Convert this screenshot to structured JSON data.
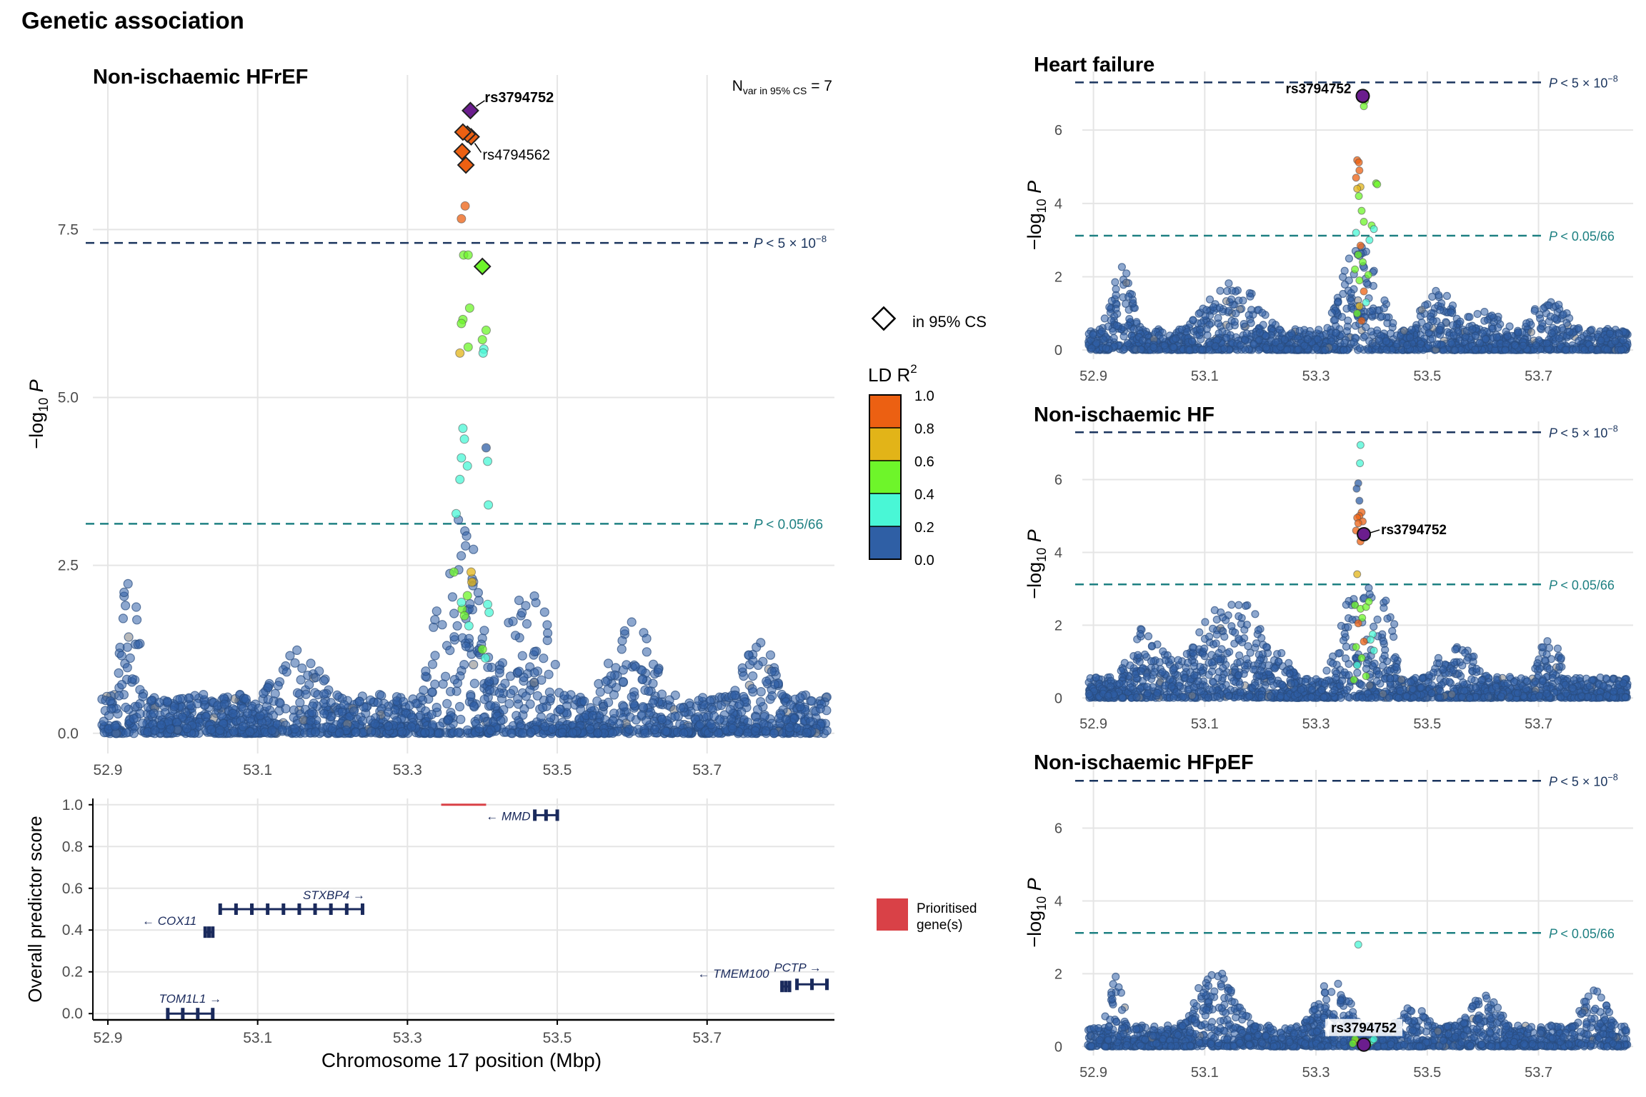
{
  "figure_title": "Genetic association",
  "thresholds": {
    "genome_wide": 7.3,
    "bonferroni": 3.12
  },
  "threshold_labels": {
    "p_prefix": "P",
    "genome_wide": "< 5 × 10",
    "genome_wide_exp": "−8",
    "bonferroni": "< 0.05/66"
  },
  "colors": {
    "ld_0": "#2F5FA5",
    "ld_02": "#49F7D6",
    "ld_04": "#6EF52A",
    "ld_06": "#E2B418",
    "ld_08": "#EC6012",
    "lead": "#6B1D8E",
    "gw_line": "#1B355E",
    "bonf_line": "#1E8082",
    "gene": "#1A2A5C",
    "prioritised": "#D94147",
    "grid": "#E5E5E5"
  },
  "legend": {
    "cs_label": "in 95% CS",
    "ld_title": "LD R",
    "ld_title_sup": "2",
    "ld_ticks": [
      "1.0",
      "0.8",
      "0.6",
      "0.4",
      "0.2",
      "0.0"
    ],
    "prioritised_line1": "Prioritised",
    "prioritised_line2": "gene(s)"
  },
  "chart_data": [
    {
      "type": "scatter",
      "title": "Non-ischaemic HFrEF",
      "xlabel": "",
      "ylabel": "−log10 P",
      "xlim": [
        52.88,
        53.87
      ],
      "ylim": [
        -0.3,
        9.8
      ],
      "x_ticks": [
        "52.9",
        "53.1",
        "53.3",
        "53.5",
        "53.7"
      ],
      "y_ticks": [
        "0.0",
        "2.5",
        "5.0",
        "7.5"
      ],
      "annotation": "N var in 95% CS = 7",
      "annotation_parts": {
        "n": "N",
        "sub": "var in 95% CS",
        "eq": "= 7"
      },
      "credible_set": [
        {
          "x": 53.384,
          "y": 9.27,
          "ld": 1.0,
          "lead": true,
          "label": "rs3794752"
        },
        {
          "x": 53.374,
          "y": 8.95,
          "ld": 0.9
        },
        {
          "x": 53.38,
          "y": 8.92,
          "ld": 0.9
        },
        {
          "x": 53.385,
          "y": 8.88,
          "ld": 0.85,
          "label": "rs4794562"
        },
        {
          "x": 53.373,
          "y": 8.66,
          "ld": 0.8
        },
        {
          "x": 53.378,
          "y": 8.46,
          "ld": 0.8
        },
        {
          "x": 53.4,
          "y": 6.95,
          "ld": 0.45
        }
      ],
      "label_texts": {
        "lead": "rs3794752",
        "second": "rs4794562"
      },
      "highlight_points": [
        {
          "x": 53.377,
          "y": 7.85,
          "ld": 0.85
        },
        {
          "x": 53.372,
          "y": 7.66,
          "ld": 0.85
        },
        {
          "x": 53.375,
          "y": 7.12,
          "ld": 0.45
        },
        {
          "x": 53.381,
          "y": 7.12,
          "ld": 0.45
        },
        {
          "x": 53.383,
          "y": 6.33,
          "ld": 0.45
        },
        {
          "x": 53.374,
          "y": 6.16,
          "ld": 0.45
        },
        {
          "x": 53.372,
          "y": 6.1,
          "ld": 0.45
        },
        {
          "x": 53.405,
          "y": 6.0,
          "ld": 0.45
        },
        {
          "x": 53.4,
          "y": 5.86,
          "ld": 0.45
        },
        {
          "x": 53.402,
          "y": 5.72,
          "ld": 0.25
        },
        {
          "x": 53.401,
          "y": 5.66,
          "ld": 0.25
        },
        {
          "x": 53.381,
          "y": 5.75,
          "ld": 0.45
        },
        {
          "x": 53.37,
          "y": 5.66,
          "ld": 0.75
        },
        {
          "x": 53.374,
          "y": 4.54,
          "ld": 0.25
        },
        {
          "x": 53.376,
          "y": 4.38,
          "ld": 0.25
        },
        {
          "x": 53.372,
          "y": 4.1,
          "ld": 0.25
        },
        {
          "x": 53.38,
          "y": 3.98,
          "ld": 0.25
        },
        {
          "x": 53.37,
          "y": 3.78,
          "ld": 0.25
        },
        {
          "x": 53.407,
          "y": 4.05,
          "ld": 0.25
        },
        {
          "x": 53.408,
          "y": 3.4,
          "ld": 0.25
        },
        {
          "x": 53.405,
          "y": 4.25,
          "ld": 0.05
        },
        {
          "x": 53.365,
          "y": 3.27,
          "ld": 0.25
        },
        {
          "x": 53.362,
          "y": 2.4,
          "ld": 0.45
        },
        {
          "x": 53.385,
          "y": 2.4,
          "ld": 0.7
        },
        {
          "x": 53.386,
          "y": 2.25,
          "ld": 0.7
        },
        {
          "x": 53.38,
          "y": 2.05,
          "ld": 0.45
        },
        {
          "x": 53.373,
          "y": 1.85,
          "ld": 0.45
        },
        {
          "x": 53.376,
          "y": 1.75,
          "ld": 0.45
        },
        {
          "x": 53.372,
          "y": 1.95,
          "ld": 0.3
        },
        {
          "x": 53.407,
          "y": 1.92,
          "ld": 0.3
        },
        {
          "x": 53.409,
          "y": 1.8,
          "ld": 0.3
        },
        {
          "x": 53.382,
          "y": 1.6,
          "ld": 0.3
        },
        {
          "x": 53.4,
          "y": 1.25,
          "ld": 0.45
        },
        {
          "x": 53.404,
          "y": 1.12,
          "ld": 0.3
        }
      ],
      "background": {
        "n": 1700,
        "peaks": [
          {
            "x": 52.93,
            "h": 2.9,
            "w": 0.015
          },
          {
            "x": 53.37,
            "h": 3.3,
            "w": 0.04
          },
          {
            "x": 53.46,
            "h": 2.4,
            "w": 0.04
          },
          {
            "x": 53.6,
            "h": 1.6,
            "w": 0.05
          },
          {
            "x": 53.77,
            "h": 1.3,
            "w": 0.04
          },
          {
            "x": 53.15,
            "h": 1.2,
            "w": 0.06
          }
        ]
      }
    },
    {
      "type": "gene_track",
      "title": "",
      "xlabel": "Chromosome 17 position (Mbp)",
      "ylabel": "Overall predictor score",
      "xlim": [
        52.88,
        53.87
      ],
      "ylim": [
        -0.03,
        1.03
      ],
      "x_ticks": [
        "52.9",
        "53.1",
        "53.3",
        "53.5",
        "53.7"
      ],
      "y_ticks": [
        "0.0",
        "0.2",
        "0.4",
        "0.6",
        "0.8",
        "1.0"
      ],
      "genes": [
        {
          "name": "MMD",
          "start": 53.47,
          "end": 53.5,
          "y": 0.95,
          "dir": "left",
          "prioritised": false
        },
        {
          "name": "",
          "start": 53.345,
          "end": 53.405,
          "y": 1.0,
          "dir": "none",
          "prioritised": true
        },
        {
          "name": "STXBP4",
          "start": 53.05,
          "end": 53.24,
          "y": 0.5,
          "dir": "right",
          "prioritised": false
        },
        {
          "name": "COX11",
          "start": 53.03,
          "end": 53.04,
          "y": 0.39,
          "dir": "left",
          "prioritised": false
        },
        {
          "name": "TOM1L1",
          "start": 52.98,
          "end": 53.04,
          "y": 0.0,
          "dir": "right",
          "prioritised": false
        },
        {
          "name": "TMEM100",
          "start": 53.8,
          "end": 53.81,
          "y": 0.13,
          "dir": "left",
          "prioritised": false
        },
        {
          "name": "PCTP",
          "start": 53.82,
          "end": 53.86,
          "y": 0.14,
          "dir": "right",
          "prioritised": false
        }
      ]
    },
    {
      "type": "scatter",
      "title": "Heart failure",
      "ylabel": "−log10 P",
      "xlim": [
        52.88,
        53.87
      ],
      "ylim": [
        -0.25,
        7.6
      ],
      "x_ticks": [
        "52.9",
        "53.1",
        "53.3",
        "53.5",
        "53.7"
      ],
      "y_ticks": [
        "0",
        "2",
        "4",
        "6"
      ],
      "lead": {
        "x": 53.384,
        "y": 6.93,
        "label": "rs3794752"
      },
      "highlight_points": [
        {
          "x": 53.388,
          "y": 6.8,
          "ld": 0.45
        },
        {
          "x": 53.386,
          "y": 6.65,
          "ld": 0.45
        },
        {
          "x": 53.374,
          "y": 5.18,
          "ld": 0.85
        },
        {
          "x": 53.377,
          "y": 5.12,
          "ld": 0.85
        },
        {
          "x": 53.378,
          "y": 4.9,
          "ld": 0.85
        },
        {
          "x": 53.372,
          "y": 4.7,
          "ld": 0.85
        },
        {
          "x": 53.38,
          "y": 4.45,
          "ld": 0.7
        },
        {
          "x": 53.374,
          "y": 4.4,
          "ld": 0.7
        },
        {
          "x": 53.408,
          "y": 4.55,
          "ld": 0.45
        },
        {
          "x": 53.41,
          "y": 4.52,
          "ld": 0.45
        },
        {
          "x": 53.377,
          "y": 4.2,
          "ld": 0.45
        },
        {
          "x": 53.382,
          "y": 3.8,
          "ld": 0.45
        },
        {
          "x": 53.386,
          "y": 3.5,
          "ld": 0.45
        },
        {
          "x": 53.4,
          "y": 3.4,
          "ld": 0.45
        },
        {
          "x": 53.404,
          "y": 3.3,
          "ld": 0.25
        },
        {
          "x": 53.372,
          "y": 3.2,
          "ld": 0.25
        },
        {
          "x": 53.396,
          "y": 3.0,
          "ld": 0.25
        },
        {
          "x": 53.38,
          "y": 2.85,
          "ld": 0.85
        },
        {
          "x": 53.376,
          "y": 2.6,
          "ld": 0.45
        },
        {
          "x": 53.384,
          "y": 2.4,
          "ld": 0.45
        },
        {
          "x": 53.37,
          "y": 2.2,
          "ld": 0.45
        },
        {
          "x": 53.394,
          "y": 2.05,
          "ld": 0.45
        },
        {
          "x": 53.378,
          "y": 1.9,
          "ld": 0.45
        },
        {
          "x": 53.386,
          "y": 1.6,
          "ld": 0.85
        },
        {
          "x": 53.39,
          "y": 1.3,
          "ld": 0.25
        },
        {
          "x": 53.374,
          "y": 1.0,
          "ld": 0.45
        },
        {
          "x": 53.382,
          "y": 0.8,
          "ld": 0.85
        },
        {
          "x": 53.378,
          "y": 1.2,
          "ld": 0.7
        }
      ],
      "background": {
        "n": 1700,
        "peaks": [
          {
            "x": 52.95,
            "h": 2.2,
            "w": 0.03
          },
          {
            "x": 53.38,
            "h": 2.9,
            "w": 0.05
          },
          {
            "x": 53.15,
            "h": 1.8,
            "w": 0.08
          },
          {
            "x": 53.52,
            "h": 1.6,
            "w": 0.05
          },
          {
            "x": 53.72,
            "h": 1.3,
            "w": 0.06
          },
          {
            "x": 53.6,
            "h": 1.0,
            "w": 0.08
          }
        ]
      }
    },
    {
      "type": "scatter",
      "title": "Non-ischaemic HF",
      "ylabel": "−log10 P",
      "xlim": [
        52.88,
        53.87
      ],
      "ylim": [
        -0.25,
        7.6
      ],
      "x_ticks": [
        "52.9",
        "53.1",
        "53.3",
        "53.5",
        "53.7"
      ],
      "y_ticks": [
        "0",
        "2",
        "4",
        "6"
      ],
      "lead": {
        "x": 53.386,
        "y": 4.5,
        "label": "rs3794752"
      },
      "highlight_points": [
        {
          "x": 53.38,
          "y": 6.95,
          "ld": 0.25
        },
        {
          "x": 53.379,
          "y": 6.45,
          "ld": 0.25
        },
        {
          "x": 53.376,
          "y": 5.9,
          "ld": 0.05
        },
        {
          "x": 53.373,
          "y": 5.75,
          "ld": 0.05
        },
        {
          "x": 53.378,
          "y": 5.42,
          "ld": 0.05
        },
        {
          "x": 53.382,
          "y": 5.1,
          "ld": 0.85
        },
        {
          "x": 53.378,
          "y": 5.0,
          "ld": 0.85
        },
        {
          "x": 53.374,
          "y": 4.95,
          "ld": 0.85
        },
        {
          "x": 53.384,
          "y": 4.85,
          "ld": 0.85
        },
        {
          "x": 53.376,
          "y": 4.8,
          "ld": 0.85
        },
        {
          "x": 53.372,
          "y": 4.6,
          "ld": 0.85
        },
        {
          "x": 53.38,
          "y": 4.3,
          "ld": 0.85
        },
        {
          "x": 53.374,
          "y": 3.4,
          "ld": 0.7
        },
        {
          "x": 53.37,
          "y": 2.55,
          "ld": 0.45
        },
        {
          "x": 53.38,
          "y": 2.45,
          "ld": 0.45
        },
        {
          "x": 53.39,
          "y": 2.5,
          "ld": 0.45
        },
        {
          "x": 53.395,
          "y": 2.65,
          "ld": 0.45
        },
        {
          "x": 53.383,
          "y": 2.2,
          "ld": 0.45
        },
        {
          "x": 53.376,
          "y": 2.05,
          "ld": 0.85
        },
        {
          "x": 53.402,
          "y": 1.75,
          "ld": 0.25
        },
        {
          "x": 53.398,
          "y": 1.6,
          "ld": 0.25
        },
        {
          "x": 53.386,
          "y": 1.55,
          "ld": 0.85
        },
        {
          "x": 53.372,
          "y": 1.4,
          "ld": 0.45
        },
        {
          "x": 53.404,
          "y": 1.3,
          "ld": 0.25
        },
        {
          "x": 53.382,
          "y": 1.1,
          "ld": 0.45
        },
        {
          "x": 53.374,
          "y": 0.9,
          "ld": 0.25
        },
        {
          "x": 53.39,
          "y": 0.6,
          "ld": 0.45
        },
        {
          "x": 53.368,
          "y": 0.5,
          "ld": 0.45
        }
      ],
      "background": {
        "n": 1700,
        "peaks": [
          {
            "x": 53.0,
            "h": 2.0,
            "w": 0.05
          },
          {
            "x": 53.15,
            "h": 2.6,
            "w": 0.1
          },
          {
            "x": 53.38,
            "h": 3.2,
            "w": 0.05
          },
          {
            "x": 53.43,
            "h": 3.4,
            "w": 0.015
          },
          {
            "x": 53.55,
            "h": 1.5,
            "w": 0.06
          },
          {
            "x": 53.72,
            "h": 1.7,
            "w": 0.03
          }
        ]
      }
    },
    {
      "type": "scatter",
      "title": "Non-ischaemic HFpEF",
      "ylabel": "−log10 P",
      "xlim": [
        52.88,
        53.87
      ],
      "ylim": [
        -0.25,
        7.6
      ],
      "x_ticks": [
        "52.9",
        "53.1",
        "53.3",
        "53.5",
        "53.7"
      ],
      "y_ticks": [
        "0",
        "2",
        "4",
        "6"
      ],
      "lead": {
        "x": 53.386,
        "y": 0.05,
        "label": "rs3794752"
      },
      "highlight_points": [
        {
          "x": 53.376,
          "y": 2.8,
          "ld": 0.25
        },
        {
          "x": 53.372,
          "y": 0.15,
          "ld": 0.85
        },
        {
          "x": 53.376,
          "y": 0.12,
          "ld": 0.85
        },
        {
          "x": 53.38,
          "y": 0.1,
          "ld": 0.7
        },
        {
          "x": 53.392,
          "y": 0.12,
          "ld": 0.45
        },
        {
          "x": 53.396,
          "y": 0.1,
          "ld": 0.45
        },
        {
          "x": 53.4,
          "y": 0.15,
          "ld": 0.25
        },
        {
          "x": 53.37,
          "y": 0.2,
          "ld": 0.45
        },
        {
          "x": 53.404,
          "y": 0.2,
          "ld": 0.25
        },
        {
          "x": 53.366,
          "y": 0.08,
          "ld": 0.45
        }
      ],
      "background": {
        "n": 1700,
        "peaks": [
          {
            "x": 52.94,
            "h": 2.0,
            "w": 0.02
          },
          {
            "x": 53.12,
            "h": 2.0,
            "w": 0.06
          },
          {
            "x": 53.33,
            "h": 1.8,
            "w": 0.05
          },
          {
            "x": 53.6,
            "h": 1.4,
            "w": 0.05
          },
          {
            "x": 53.8,
            "h": 1.6,
            "w": 0.04
          },
          {
            "x": 53.47,
            "h": 1.1,
            "w": 0.05
          }
        ]
      }
    }
  ]
}
